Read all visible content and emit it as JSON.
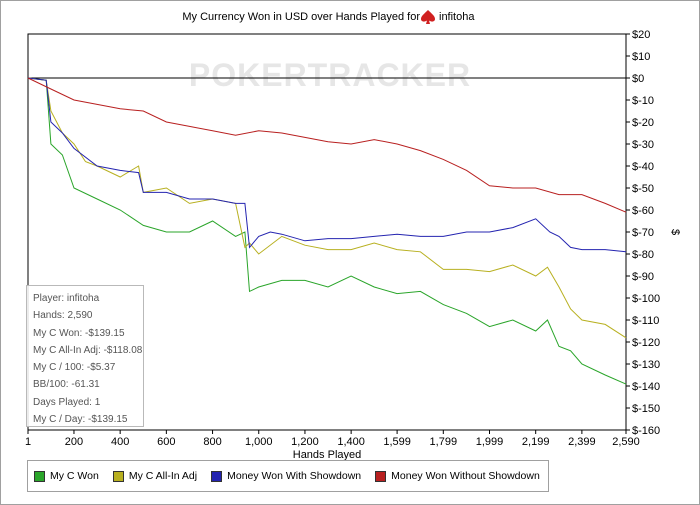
{
  "chart_data": {
    "type": "line",
    "title": "My Currency Won in USD over Hands Played for",
    "player_name": "infitoha",
    "watermark": "POKERTRACKER",
    "xlabel": "Hands Played",
    "ylabel": "$",
    "xlim": [
      1,
      2590
    ],
    "ylim": [
      -160,
      20
    ],
    "x_ticks": [
      1,
      200,
      400,
      600,
      800,
      1000,
      1200,
      1400,
      1599,
      1799,
      1999,
      2199,
      2399,
      2590
    ],
    "x_tick_labels": [
      "1",
      "200",
      "400",
      "600",
      "800",
      "1,000",
      "1,200",
      "1,400",
      "1,599",
      "1,799",
      "1,999",
      "2,199",
      "2,399",
      "2,590"
    ],
    "y_ticks": [
      20,
      10,
      0,
      -10,
      -20,
      -30,
      -40,
      -50,
      -60,
      -70,
      -80,
      -90,
      -100,
      -110,
      -120,
      -130,
      -140,
      -150,
      -160
    ],
    "y_tick_labels": [
      "$20",
      "$10",
      "$0",
      "$-10",
      "$-20",
      "$-30",
      "$-40",
      "$-50",
      "$-60",
      "$-70",
      "$-80",
      "$-90",
      "$-100",
      "$-110",
      "$-120",
      "$-130",
      "$-140",
      "$-150",
      "$-160"
    ],
    "grid": false,
    "legend_position": "bottom-left",
    "series": [
      {
        "name": "My C Won",
        "color": "#2aa52a",
        "x": [
          1,
          80,
          100,
          150,
          200,
          300,
          400,
          500,
          600,
          700,
          800,
          900,
          940,
          960,
          1000,
          1100,
          1200,
          1300,
          1400,
          1500,
          1599,
          1700,
          1799,
          1900,
          1999,
          2100,
          2199,
          2250,
          2300,
          2350,
          2399,
          2500,
          2590
        ],
        "y": [
          0,
          -1,
          -30,
          -35,
          -50,
          -55,
          -60,
          -67,
          -70,
          -70,
          -65,
          -72,
          -70,
          -97,
          -95,
          -92,
          -92,
          -95,
          -90,
          -95,
          -98,
          -97,
          -103,
          -107,
          -113,
          -110,
          -115,
          -110,
          -122,
          -124,
          -130,
          -135,
          -139.15
        ]
      },
      {
        "name": "My C All-In Adj",
        "color": "#b8b020",
        "x": [
          1,
          80,
          100,
          150,
          200,
          250,
          300,
          400,
          480,
          500,
          600,
          700,
          800,
          900,
          940,
          960,
          1000,
          1100,
          1200,
          1300,
          1400,
          1500,
          1599,
          1700,
          1799,
          1900,
          1999,
          2100,
          2199,
          2250,
          2300,
          2350,
          2399,
          2500,
          2590
        ],
        "y": [
          0,
          -1,
          -15,
          -25,
          -30,
          -38,
          -40,
          -45,
          -40,
          -52,
          -50,
          -57,
          -55,
          -57,
          -77,
          -75,
          -80,
          -72,
          -76,
          -78,
          -78,
          -75,
          -78,
          -79,
          -87,
          -87,
          -88,
          -85,
          -90,
          -86,
          -95,
          -105,
          -110,
          -112,
          -118.08
        ]
      },
      {
        "name": "Money Won With Showdown",
        "color": "#2424b0",
        "x": [
          1,
          80,
          100,
          150,
          200,
          300,
          400,
          480,
          500,
          600,
          700,
          800,
          900,
          940,
          960,
          1000,
          1050,
          1100,
          1200,
          1300,
          1400,
          1500,
          1599,
          1700,
          1799,
          1900,
          1999,
          2100,
          2199,
          2260,
          2300,
          2350,
          2399,
          2500,
          2590
        ],
        "y": [
          0,
          -1,
          -20,
          -25,
          -32,
          -40,
          -42,
          -43,
          -52,
          -52,
          -55,
          -55,
          -57,
          -57,
          -77,
          -72,
          -70,
          -71,
          -74,
          -73,
          -73,
          -72,
          -71,
          -72,
          -72,
          -70,
          -70,
          -68,
          -64,
          -70,
          -72,
          -77,
          -78,
          -78,
          -79
        ]
      },
      {
        "name": "Money Won Without Showdown",
        "color": "#b82020",
        "x": [
          1,
          100,
          200,
          300,
          400,
          500,
          600,
          700,
          800,
          900,
          1000,
          1100,
          1200,
          1300,
          1400,
          1500,
          1599,
          1700,
          1799,
          1900,
          1999,
          2100,
          2199,
          2300,
          2399,
          2500,
          2590
        ],
        "y": [
          0,
          -5,
          -10,
          -12,
          -14,
          -15,
          -20,
          -22,
          -24,
          -26,
          -24,
          -25,
          -27,
          -29,
          -30,
          -28,
          -30,
          -33,
          -37,
          -42,
          -49,
          -50,
          -50,
          -53,
          -53,
          -57,
          -61
        ]
      }
    ]
  },
  "info_box": [
    "Player: infitoha",
    "Hands: 2,590",
    "My C Won: -$139.15",
    "My C All-In Adj: -$118.08",
    "My C / 100: -$5.37",
    "BB/100: -61.31",
    "Days Played: 1",
    "My C / Day: -$139.15"
  ]
}
